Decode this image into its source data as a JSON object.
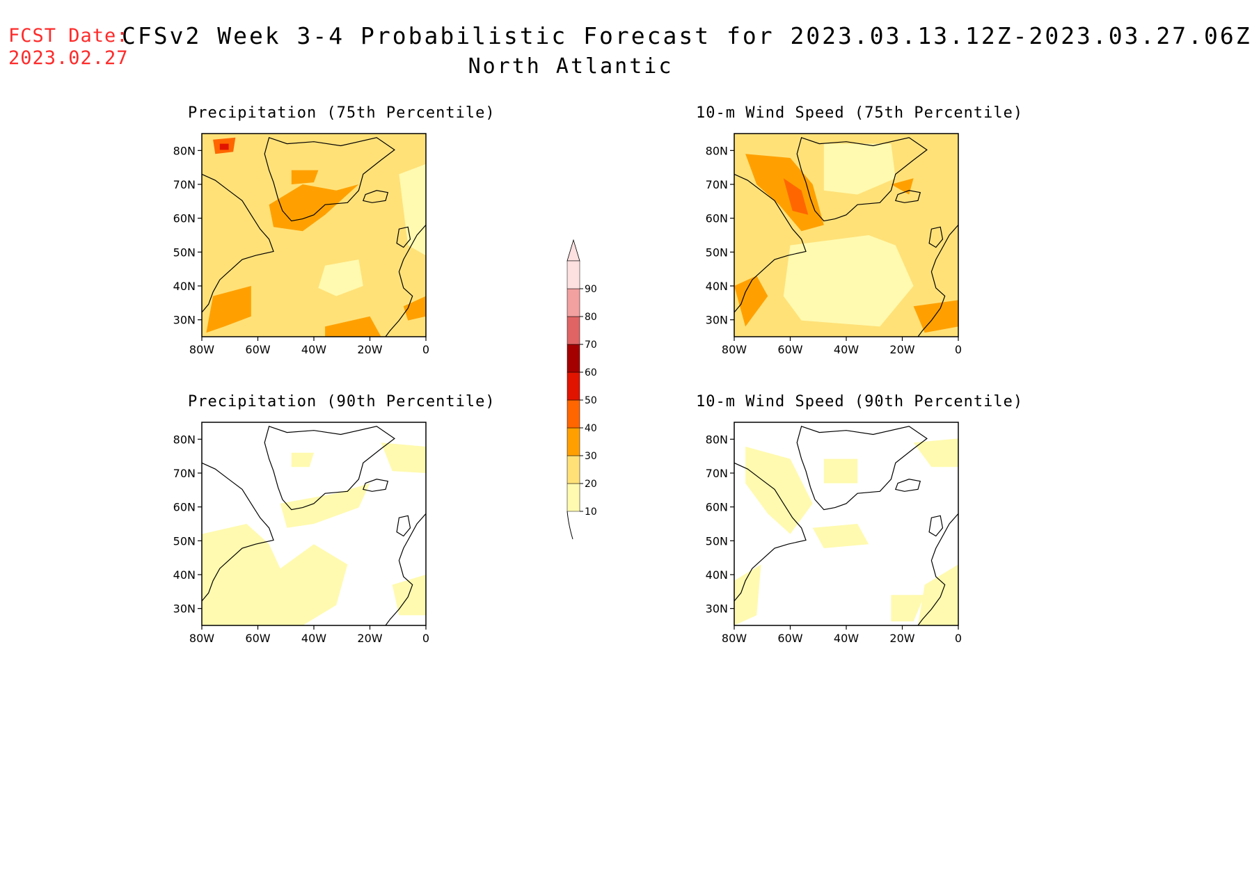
{
  "header": {
    "fcst_label": "FCST Date:",
    "fcst_date": "2023.02.27",
    "title": "CFSv2 Week 3-4 Probabilistic Forecast for 2023.03.13.12Z-2023.03.27.06Z",
    "region": "North Atlantic"
  },
  "panels": [
    {
      "id": "precip75",
      "title": "Precipitation (75th Percentile)"
    },
    {
      "id": "wind75",
      "title": "10-m Wind Speed (75th Percentile)"
    },
    {
      "id": "precip90",
      "title": "Precipitation (90th Percentile)"
    },
    {
      "id": "wind90",
      "title": "10-m Wind Speed (90th Percentile)"
    }
  ],
  "axes": {
    "lat_labels": [
      "80N",
      "70N",
      "60N",
      "50N",
      "40N",
      "30N"
    ],
    "lon_labels": [
      "80W",
      "60W",
      "40W",
      "20W",
      "0"
    ]
  },
  "colorbar": {
    "levels": [
      "10",
      "20",
      "30",
      "40",
      "50",
      "60",
      "70",
      "80",
      "90"
    ],
    "colors": [
      "#fffaaf",
      "#ffe178",
      "#ffa000",
      "#ff6600",
      "#e11400",
      "#a50000",
      "#e06464",
      "#f2a0a0",
      "#fde0e0"
    ]
  }
}
